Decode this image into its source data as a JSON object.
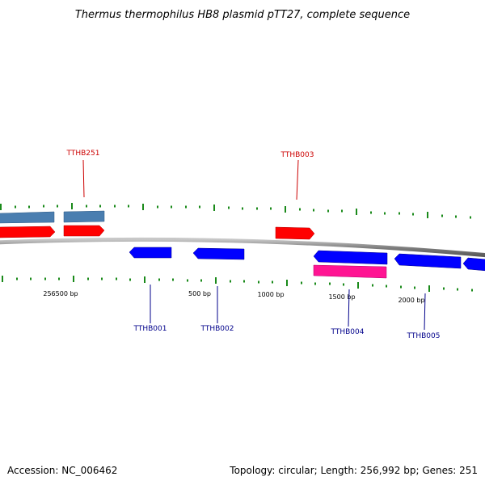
{
  "title": "Thermus thermophilus HB8 plasmid pTT27, complete sequence",
  "footer": {
    "accession": "Accession: NC_006462",
    "summary": "Topology: circular; Length: 256,992 bp; Genes: 251"
  },
  "colors": {
    "backbone": "#808080",
    "tick": "#1a8a1a",
    "forward_gene": "#ff0000",
    "reverse_gene": "#0000ff",
    "forward_feature": "#4a7eb0",
    "reverse_feature": "#ff1493",
    "forward_label": "#cc0000",
    "reverse_label": "#00008b"
  },
  "scale_labels": [
    "256500 bp",
    "500 bp",
    "1000 bp",
    "1500 bp",
    "2000 bp"
  ],
  "genes": [
    {
      "id": "TTHB251",
      "strand": "forward"
    },
    {
      "id": "TTHB003",
      "strand": "forward"
    },
    {
      "id": "TTHB001",
      "strand": "reverse"
    },
    {
      "id": "TTHB002",
      "strand": "reverse"
    },
    {
      "id": "TTHB004",
      "strand": "reverse"
    },
    {
      "id": "TTHB005",
      "strand": "reverse"
    }
  ]
}
